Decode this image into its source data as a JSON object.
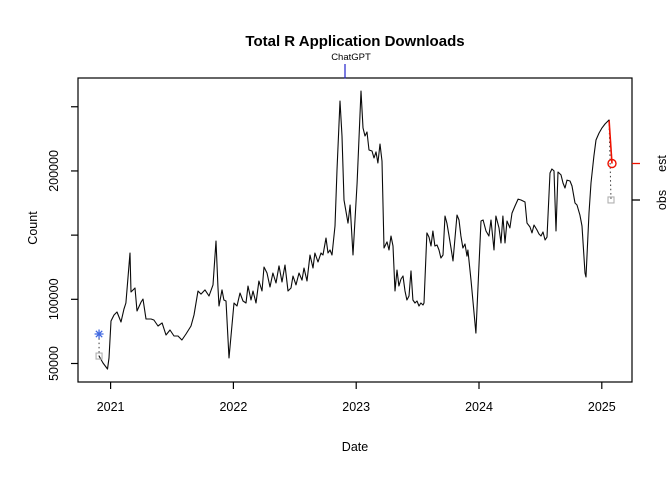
{
  "figure": {
    "title": "Total R Application Downloads",
    "x_axis": {
      "label": "Date",
      "ticks": [
        2021,
        2022,
        2023,
        2024,
        2025
      ]
    },
    "y_axis": {
      "label": "Count",
      "ticks": [
        50000,
        100000,
        150000,
        200000,
        250000
      ],
      "labeled_ticks": [
        50000,
        100000,
        200000
      ]
    },
    "annotation": {
      "label": "ChatGPT",
      "x": 2022.909,
      "color": "#2222cc"
    },
    "right_markers": {
      "est": {
        "label": "est",
        "value": 205800,
        "color": "#ee1100"
      },
      "obs": {
        "label": "obs",
        "value": 177400,
        "color": "#000000"
      }
    },
    "colors": {
      "series": "#0a0a0a",
      "estimate": "#ee1100",
      "observed_square": "#b0b0b0",
      "first_estimate_asterisk": "#4169e1",
      "annotation_blue": "#2222cc",
      "background": "#ffffff"
    }
  },
  "chart_data": {
    "type": "line",
    "title": "Total R Application Downloads",
    "xlabel": "Date",
    "ylabel": "Count",
    "x_range": [
      2020.73,
      2025.25
    ],
    "y_range": [
      35600,
      272400
    ],
    "grid": false,
    "legend_position": "none",
    "event_annotation": {
      "label": "ChatGPT",
      "x": 2022.909
    },
    "series": [
      {
        "name": "downloads",
        "color": "#0a0a0a",
        "points": [
          [
            2020.906,
            55800
          ],
          [
            2020.938,
            50400
          ],
          [
            2020.975,
            45700
          ],
          [
            2020.987,
            54300
          ],
          [
            2021.003,
            83100
          ],
          [
            2021.028,
            87800
          ],
          [
            2021.052,
            90100
          ],
          [
            2021.085,
            82300
          ],
          [
            2021.109,
            92500
          ],
          [
            2021.125,
            97100
          ],
          [
            2021.158,
            136100
          ],
          [
            2021.166,
            105700
          ],
          [
            2021.199,
            108800
          ],
          [
            2021.215,
            90900
          ],
          [
            2021.248,
            97900
          ],
          [
            2021.264,
            100200
          ],
          [
            2021.288,
            84700
          ],
          [
            2021.329,
            84700
          ],
          [
            2021.353,
            83900
          ],
          [
            2021.386,
            79200
          ],
          [
            2021.419,
            81600
          ],
          [
            2021.451,
            72200
          ],
          [
            2021.484,
            76100
          ],
          [
            2021.516,
            71400
          ],
          [
            2021.549,
            71400
          ],
          [
            2021.581,
            68300
          ],
          [
            2021.614,
            73000
          ],
          [
            2021.655,
            79200
          ],
          [
            2021.679,
            87800
          ],
          [
            2021.712,
            106500
          ],
          [
            2021.736,
            104100
          ],
          [
            2021.769,
            107300
          ],
          [
            2021.801,
            102600
          ],
          [
            2021.834,
            111200
          ],
          [
            2021.858,
            145400
          ],
          [
            2021.874,
            110400
          ],
          [
            2021.883,
            94800
          ],
          [
            2021.907,
            107300
          ],
          [
            2021.923,
            99500
          ],
          [
            2021.94,
            98700
          ],
          [
            2021.964,
            54300
          ],
          [
            2022.005,
            97100
          ],
          [
            2022.029,
            94800
          ],
          [
            2022.054,
            104900
          ],
          [
            2022.078,
            98700
          ],
          [
            2022.103,
            97100
          ],
          [
            2022.119,
            110400
          ],
          [
            2022.143,
            99500
          ],
          [
            2022.16,
            106500
          ],
          [
            2022.184,
            97100
          ],
          [
            2022.208,
            114300
          ],
          [
            2022.233,
            106500
          ],
          [
            2022.249,
            125200
          ],
          [
            2022.274,
            120500
          ],
          [
            2022.298,
            109600
          ],
          [
            2022.322,
            120500
          ],
          [
            2022.347,
            112700
          ],
          [
            2022.371,
            126000
          ],
          [
            2022.396,
            113500
          ],
          [
            2022.42,
            126700
          ],
          [
            2022.445,
            106500
          ],
          [
            2022.469,
            108800
          ],
          [
            2022.485,
            118200
          ],
          [
            2022.51,
            111200
          ],
          [
            2022.534,
            120500
          ],
          [
            2022.559,
            115000
          ],
          [
            2022.575,
            124400
          ],
          [
            2022.599,
            114300
          ],
          [
            2022.624,
            134500
          ],
          [
            2022.648,
            124400
          ],
          [
            2022.664,
            136100
          ],
          [
            2022.689,
            129100
          ],
          [
            2022.713,
            136100
          ],
          [
            2022.73,
            134500
          ],
          [
            2022.754,
            147800
          ],
          [
            2022.77,
            136100
          ],
          [
            2022.787,
            138400
          ],
          [
            2022.803,
            134500
          ],
          [
            2022.827,
            157100
          ],
          [
            2022.844,
            200700
          ],
          [
            2022.868,
            254500
          ],
          [
            2022.884,
            227200
          ],
          [
            2022.901,
            177400
          ],
          [
            2022.933,
            159400
          ],
          [
            2022.95,
            173500
          ],
          [
            2022.974,
            134500
          ],
          [
            2023.007,
            190600
          ],
          [
            2023.039,
            262300
          ],
          [
            2023.055,
            233500
          ],
          [
            2023.072,
            227200
          ],
          [
            2023.088,
            230300
          ],
          [
            2023.104,
            216300
          ],
          [
            2023.129,
            215500
          ],
          [
            2023.145,
            210100
          ],
          [
            2023.161,
            214800
          ],
          [
            2023.177,
            206200
          ],
          [
            2023.194,
            221000
          ],
          [
            2023.21,
            207700
          ],
          [
            2023.226,
            140000
          ],
          [
            2023.251,
            144700
          ],
          [
            2023.267,
            138400
          ],
          [
            2023.283,
            149300
          ],
          [
            2023.3,
            141500
          ],
          [
            2023.316,
            106500
          ],
          [
            2023.332,
            122800
          ],
          [
            2023.348,
            110400
          ],
          [
            2023.365,
            115800
          ],
          [
            2023.381,
            118200
          ],
          [
            2023.397,
            106500
          ],
          [
            2023.413,
            99500
          ],
          [
            2023.43,
            102600
          ],
          [
            2023.446,
            122100
          ],
          [
            2023.462,
            99500
          ],
          [
            2023.479,
            97100
          ],
          [
            2023.495,
            98700
          ],
          [
            2023.511,
            94800
          ],
          [
            2023.527,
            97100
          ],
          [
            2023.544,
            95600
          ],
          [
            2023.552,
            97100
          ],
          [
            2023.576,
            151700
          ],
          [
            2023.593,
            148500
          ],
          [
            2023.609,
            141500
          ],
          [
            2023.625,
            153200
          ],
          [
            2023.641,
            141500
          ],
          [
            2023.658,
            142300
          ],
          [
            2023.674,
            138400
          ],
          [
            2023.69,
            132200
          ],
          [
            2023.707,
            134500
          ],
          [
            2023.723,
            164900
          ],
          [
            2023.739,
            159400
          ],
          [
            2023.755,
            150100
          ],
          [
            2023.772,
            140000
          ],
          [
            2023.788,
            129900
          ],
          [
            2023.821,
            165700
          ],
          [
            2023.837,
            161800
          ],
          [
            2023.853,
            149300
          ],
          [
            2023.869,
            140000
          ],
          [
            2023.886,
            143100
          ],
          [
            2023.902,
            133700
          ],
          [
            2023.91,
            138400
          ],
          [
            2023.935,
            115000
          ],
          [
            2023.975,
            73700
          ],
          [
            2024.016,
            161000
          ],
          [
            2024.033,
            161800
          ],
          [
            2024.057,
            153200
          ],
          [
            2024.081,
            149300
          ],
          [
            2024.098,
            161800
          ],
          [
            2024.122,
            138400
          ],
          [
            2024.138,
            164900
          ],
          [
            2024.163,
            155600
          ],
          [
            2024.179,
            143900
          ],
          [
            2024.195,
            164900
          ],
          [
            2024.212,
            143900
          ],
          [
            2024.228,
            161000
          ],
          [
            2024.252,
            155600
          ],
          [
            2024.269,
            167200
          ],
          [
            2024.293,
            172700
          ],
          [
            2024.318,
            178100
          ],
          [
            2024.342,
            177400
          ],
          [
            2024.375,
            175800
          ],
          [
            2024.391,
            159400
          ],
          [
            2024.415,
            156300
          ],
          [
            2024.432,
            151700
          ],
          [
            2024.448,
            157900
          ],
          [
            2024.472,
            154000
          ],
          [
            2024.489,
            150900
          ],
          [
            2024.505,
            149300
          ],
          [
            2024.521,
            152400
          ],
          [
            2024.538,
            146200
          ],
          [
            2024.554,
            148500
          ],
          [
            2024.578,
            198400
          ],
          [
            2024.594,
            201500
          ],
          [
            2024.611,
            200000
          ],
          [
            2024.627,
            153200
          ],
          [
            2024.643,
            199200
          ],
          [
            2024.668,
            196900
          ],
          [
            2024.684,
            190600
          ],
          [
            2024.7,
            186700
          ],
          [
            2024.717,
            192900
          ],
          [
            2024.741,
            192200
          ],
          [
            2024.757,
            188300
          ],
          [
            2024.782,
            175000
          ],
          [
            2024.798,
            173500
          ],
          [
            2024.822,
            165700
          ],
          [
            2024.839,
            157100
          ],
          [
            2024.863,
            120500
          ],
          [
            2024.871,
            117400
          ],
          [
            2024.896,
            167200
          ],
          [
            2024.912,
            190600
          ],
          [
            2024.936,
            211600
          ],
          [
            2024.953,
            224100
          ],
          [
            2024.977,
            229500
          ],
          [
            2025.002,
            233500
          ],
          [
            2025.026,
            236600
          ],
          [
            2025.059,
            239700
          ]
        ]
      }
    ],
    "markers": [
      {
        "name": "first-period-estimate-asterisk",
        "shape": "asterisk",
        "color": "#4169e1",
        "x": 2020.906,
        "y": 73000
      },
      {
        "name": "first-period-observed-square",
        "shape": "open-square",
        "color": "#b0b0b0",
        "x": 2020.906,
        "y": 55800
      },
      {
        "name": "latest-period-observed-square",
        "shape": "open-square",
        "color": "#b0b0b0",
        "x": 2025.075,
        "y": 177400
      },
      {
        "name": "latest-period-estimate-circle",
        "shape": "open-circle",
        "color": "#ee1100",
        "x": 2025.083,
        "y": 205800
      }
    ],
    "segments": [
      {
        "name": "start-connector-dotted",
        "style": "dotted",
        "from": [
          2020.906,
          73000
        ],
        "to": [
          2020.906,
          55800
        ]
      },
      {
        "name": "end-connector-dotted",
        "style": "dotted",
        "from": [
          2025.059,
          239700
        ],
        "to": [
          2025.075,
          177400
        ]
      },
      {
        "name": "estimate-segment-red",
        "style": "solid",
        "color": "#ee1100",
        "from": [
          2025.059,
          239700
        ],
        "to": [
          2025.083,
          205800
        ]
      }
    ]
  }
}
